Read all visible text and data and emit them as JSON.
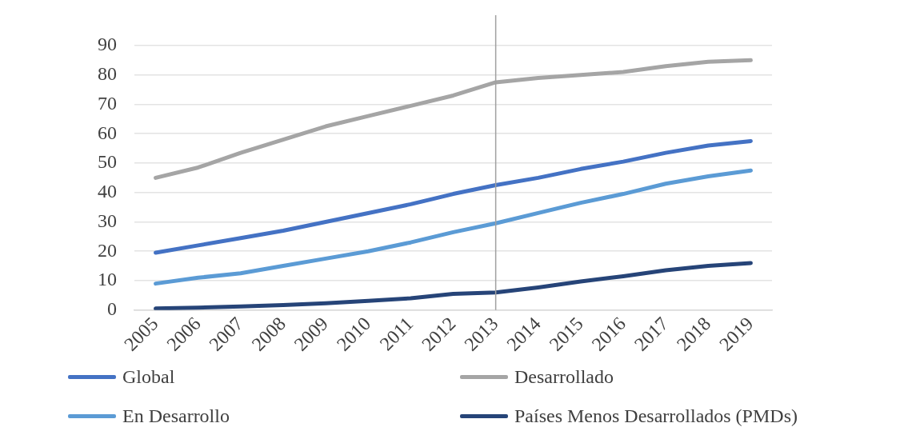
{
  "chart_data": {
    "type": "line",
    "categories": [
      "2005",
      "2006",
      "2007",
      "2008",
      "2009",
      "2010",
      "2011",
      "2012",
      "2013",
      "2014",
      "2015",
      "2016",
      "2017",
      "2018",
      "2019"
    ],
    "series": [
      {
        "name": "Global",
        "color": "#4472c4",
        "values": [
          19.5,
          22,
          24.5,
          27,
          30,
          33,
          36,
          39.5,
          42.5,
          45,
          48,
          50.5,
          53.5,
          56,
          57.5
        ]
      },
      {
        "name": "Desarrollado",
        "color": "#a5a5a5",
        "values": [
          45,
          48.5,
          53.5,
          58,
          62.5,
          66,
          69.5,
          73,
          77.5,
          79,
          80,
          81,
          83,
          84.5,
          85
        ]
      },
      {
        "name": "En Desarrollo",
        "color": "#5b9bd5",
        "values": [
          9,
          11,
          12.5,
          15,
          17.5,
          20,
          23,
          26.5,
          29.5,
          33,
          36.5,
          39.5,
          43,
          45.5,
          47.5
        ]
      },
      {
        "name": "Países Menos Desarrollados (PMDs)",
        "color": "#264478",
        "values": [
          0.5,
          0.8,
          1.2,
          1.7,
          2.3,
          3.1,
          4,
          5.5,
          6,
          7.7,
          9.7,
          11.5,
          13.5,
          15,
          16
        ]
      }
    ],
    "ylim": [
      0,
      90
    ],
    "yticks": [
      0,
      10,
      20,
      30,
      40,
      50,
      60,
      70,
      80,
      90
    ],
    "grid": "y",
    "legend": "bottom",
    "marker": "none",
    "line_style": "solid",
    "ref_lines": [
      {
        "axis": "x",
        "value": "2013",
        "color": "#a0a0a0"
      }
    ]
  }
}
